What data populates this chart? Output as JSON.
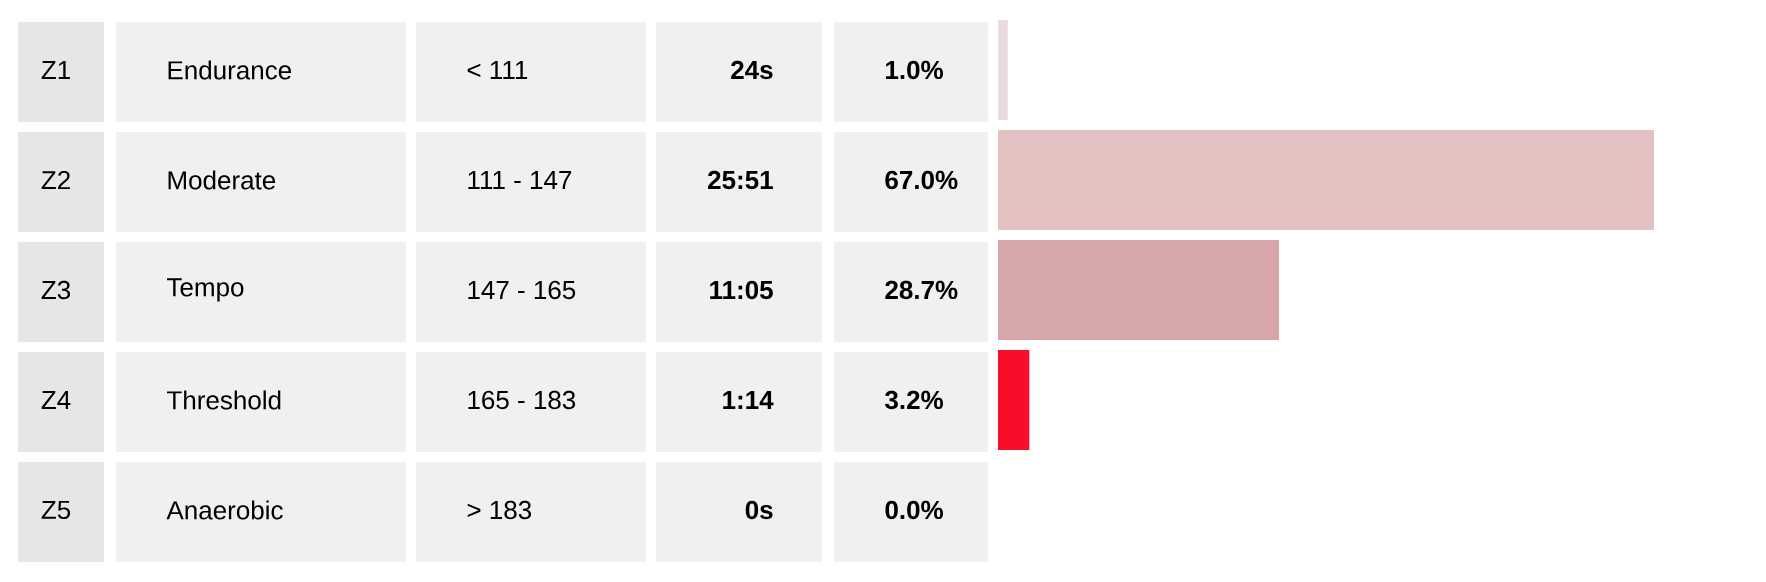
{
  "chart_data": {
    "type": "bar",
    "orientation": "horizontal",
    "categories": [
      "Z1",
      "Z2",
      "Z3",
      "Z4",
      "Z5"
    ],
    "values": [
      1.0,
      67.0,
      28.7,
      3.2,
      0.0
    ],
    "value_labels": [
      "1.0%",
      "67.0%",
      "28.7%",
      "3.2%",
      "0.0%"
    ],
    "colors": [
      "#e8dadd",
      "#e3c1c1",
      "#d7a6a8",
      "#f90e2a",
      "#c8001e"
    ],
    "tick_labels": "y",
    "annotations": [
      "Endurance",
      "< 111",
      "24s",
      "Moderate",
      "111 - 147",
      "25:51",
      "Tempo",
      "147 - 165",
      "11:05",
      "Threshold",
      "165 - 183",
      "1:14",
      "Anaerobic",
      "> 183",
      "0s"
    ]
  }
}
